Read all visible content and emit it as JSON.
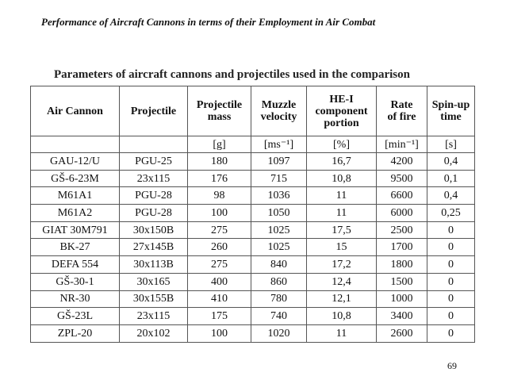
{
  "header": {
    "title": "Performance of Aircraft Cannons in terms of their Employment in Air Combat"
  },
  "table": {
    "caption": "Parameters of aircraft cannons and projectiles used in the comparison",
    "columns": [
      [
        "Air Cannon"
      ],
      [
        "Projectile"
      ],
      [
        "Projectile",
        "mass"
      ],
      [
        "Muzzle",
        "velocity"
      ],
      [
        "HE-I",
        "component",
        "portion"
      ],
      [
        "Rate",
        "of fire"
      ],
      [
        "Spin-up",
        "time"
      ]
    ],
    "units": [
      "",
      "",
      "[g]",
      "[ms⁻¹]",
      "[%]",
      "[min⁻¹]",
      "[s]"
    ],
    "rows": [
      [
        "GAU-12/U",
        "PGU-25",
        "180",
        "1097",
        "16,7",
        "4200",
        "0,4"
      ],
      [
        "GŠ-6-23M",
        "23x115",
        "176",
        "715",
        "10,8",
        "9500",
        "0,1"
      ],
      [
        "M61A1",
        "PGU-28",
        "98",
        "1036",
        "11",
        "6600",
        "0,4"
      ],
      [
        "M61A2",
        "PGU-28",
        "100",
        "1050",
        "11",
        "6000",
        "0,25"
      ],
      [
        "GIAT 30M791",
        "30x150B",
        "275",
        "1025",
        "17,5",
        "2500",
        "0"
      ],
      [
        "BK-27",
        "27x145B",
        "260",
        "1025",
        "15",
        "1700",
        "0"
      ],
      [
        "DEFA 554",
        "30x113B",
        "275",
        "840",
        "17,2",
        "1800",
        "0"
      ],
      [
        "GŠ-30-1",
        "30x165",
        "400",
        "860",
        "12,4",
        "1500",
        "0"
      ],
      [
        "NR-30",
        "30x155B",
        "410",
        "780",
        "12,1",
        "1000",
        "0"
      ],
      [
        "GŠ-23L",
        "23x115",
        "175",
        "740",
        "10,8",
        "3400",
        "0"
      ],
      [
        "ZPL-20",
        "20x102",
        "100",
        "1020",
        "11",
        "2600",
        "0"
      ]
    ]
  },
  "footer": {
    "page_number": "69"
  }
}
